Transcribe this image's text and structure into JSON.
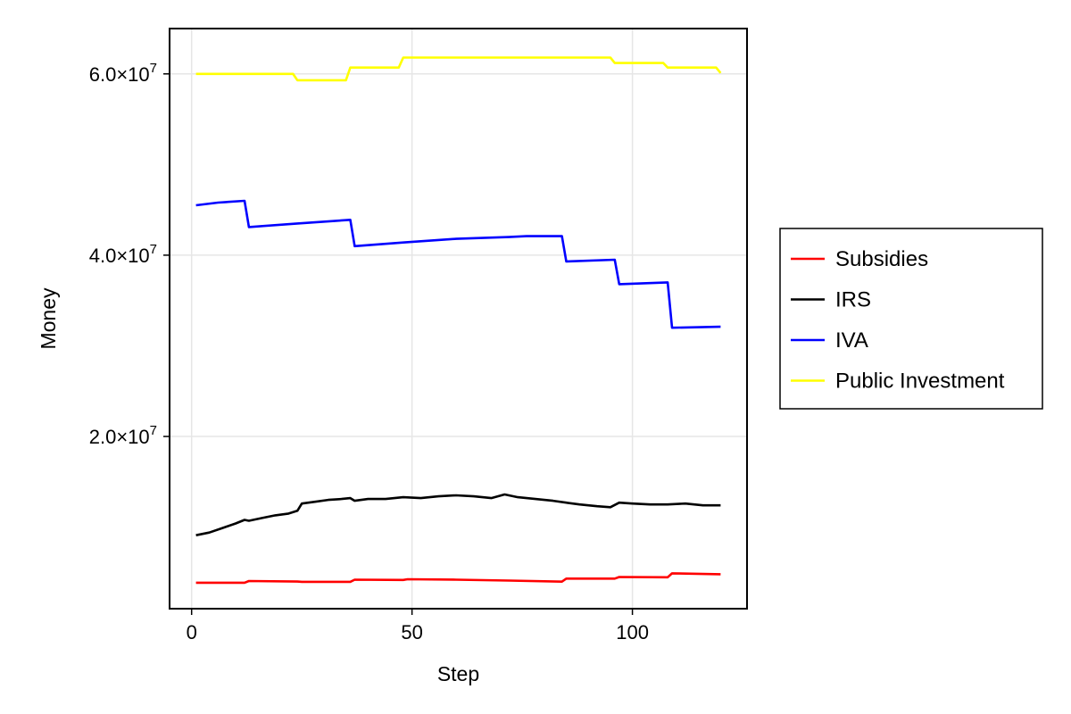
{
  "chart_data": {
    "type": "line",
    "xlabel": "Step",
    "ylabel": "Money",
    "xlim": [
      -5,
      126
    ],
    "ylim": [
      1000000,
      65000000
    ],
    "xticks": [
      0,
      50,
      100
    ],
    "xtick_labels": [
      "0",
      "50",
      "100"
    ],
    "yticks": [
      20000000,
      40000000,
      60000000
    ],
    "ytick_labels": [
      {
        "mantissa": "2.0×10",
        "exp": "7"
      },
      {
        "mantissa": "4.0×10",
        "exp": "7"
      },
      {
        "mantissa": "6.0×10",
        "exp": "7"
      }
    ],
    "grid": true,
    "legend_position": "right",
    "series": [
      {
        "name": "Subsidies",
        "color": "#ff0000",
        "points": [
          [
            1,
            3870000
          ],
          [
            12,
            3870000
          ],
          [
            13,
            4050000
          ],
          [
            24,
            3990000
          ],
          [
            25,
            3960000
          ],
          [
            36,
            3960000
          ],
          [
            37,
            4200000
          ],
          [
            48,
            4170000
          ],
          [
            49,
            4250000
          ],
          [
            60,
            4200000
          ],
          [
            72,
            4100000
          ],
          [
            84,
            3980000
          ],
          [
            85,
            4320000
          ],
          [
            96,
            4320000
          ],
          [
            97,
            4500000
          ],
          [
            108,
            4470000
          ],
          [
            109,
            4900000
          ],
          [
            120,
            4800000
          ]
        ]
      },
      {
        "name": "IRS",
        "color": "#000000",
        "points": [
          [
            1,
            9100000
          ],
          [
            4,
            9400000
          ],
          [
            7,
            9900000
          ],
          [
            10,
            10400000
          ],
          [
            12,
            10800000
          ],
          [
            13,
            10700000
          ],
          [
            16,
            11000000
          ],
          [
            19,
            11300000
          ],
          [
            22,
            11500000
          ],
          [
            24,
            11800000
          ],
          [
            25,
            12600000
          ],
          [
            28,
            12800000
          ],
          [
            31,
            13000000
          ],
          [
            34,
            13100000
          ],
          [
            36,
            13200000
          ],
          [
            37,
            12900000
          ],
          [
            40,
            13100000
          ],
          [
            44,
            13100000
          ],
          [
            48,
            13300000
          ],
          [
            52,
            13200000
          ],
          [
            56,
            13400000
          ],
          [
            60,
            13500000
          ],
          [
            64,
            13400000
          ],
          [
            68,
            13200000
          ],
          [
            71,
            13600000
          ],
          [
            74,
            13300000
          ],
          [
            78,
            13100000
          ],
          [
            82,
            12900000
          ],
          [
            85,
            12700000
          ],
          [
            88,
            12500000
          ],
          [
            92,
            12300000
          ],
          [
            95,
            12200000
          ],
          [
            97,
            12700000
          ],
          [
            100,
            12600000
          ],
          [
            104,
            12500000
          ],
          [
            108,
            12500000
          ],
          [
            112,
            12600000
          ],
          [
            116,
            12400000
          ],
          [
            120,
            12400000
          ]
        ]
      },
      {
        "name": "IVA",
        "color": "#0000ff",
        "points": [
          [
            1,
            45500000
          ],
          [
            6,
            45800000
          ],
          [
            12,
            46000000
          ],
          [
            13,
            43100000
          ],
          [
            24,
            43500000
          ],
          [
            36,
            43900000
          ],
          [
            37,
            41000000
          ],
          [
            48,
            41400000
          ],
          [
            60,
            41800000
          ],
          [
            72,
            42000000
          ],
          [
            76,
            42100000
          ],
          [
            84,
            42100000
          ],
          [
            85,
            39300000
          ],
          [
            96,
            39500000
          ],
          [
            97,
            36800000
          ],
          [
            108,
            37000000
          ],
          [
            109,
            32000000
          ],
          [
            120,
            32100000
          ]
        ]
      },
      {
        "name": "Public Investment",
        "color": "#ffff00",
        "points": [
          [
            1,
            60000000
          ],
          [
            23,
            60000000
          ],
          [
            24,
            59300000
          ],
          [
            35,
            59300000
          ],
          [
            36,
            60700000
          ],
          [
            47,
            60700000
          ],
          [
            48,
            61800000
          ],
          [
            95,
            61800000
          ],
          [
            96,
            61200000
          ],
          [
            107,
            61200000
          ],
          [
            108,
            60700000
          ],
          [
            119,
            60700000
          ],
          [
            120,
            60100000
          ]
        ]
      }
    ]
  }
}
